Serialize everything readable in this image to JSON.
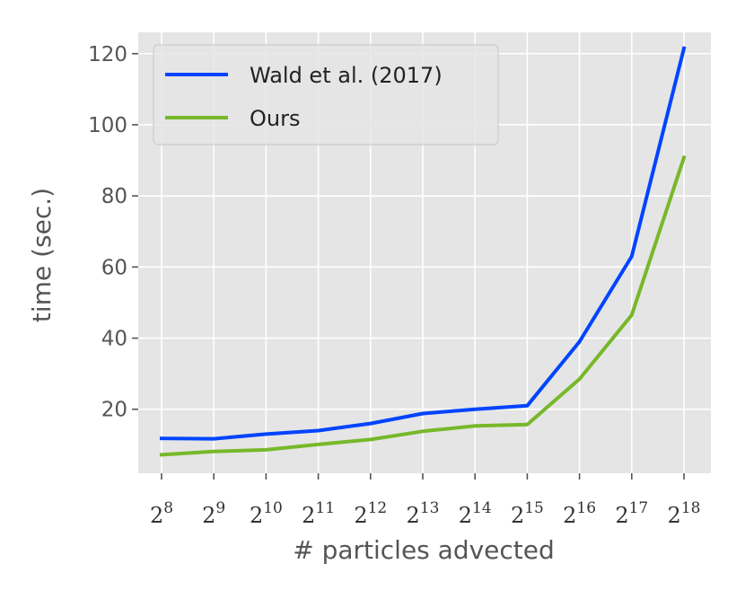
{
  "chart_data": {
    "type": "line",
    "xlabel": "# particles advected",
    "ylabel": "time (sec.)",
    "x_tick_base": "2",
    "x": [
      "8",
      "9",
      "10",
      "11",
      "12",
      "13",
      "14",
      "15",
      "16",
      "17",
      "18"
    ],
    "y_ticks": [
      20,
      40,
      60,
      80,
      100,
      120
    ],
    "ylim": [
      2,
      126
    ],
    "grid": true,
    "legend_position": "top-left",
    "series": [
      {
        "name": "Wald et al. (2017)",
        "color": "#0044ff",
        "values": [
          11.8,
          11.7,
          13.0,
          14.0,
          16.0,
          18.8,
          20.0,
          21.0,
          39.0,
          63.0,
          121.5
        ]
      },
      {
        "name": "Ours",
        "color": "#77b82a",
        "values": [
          7.2,
          8.1,
          8.6,
          10.1,
          11.5,
          13.8,
          15.3,
          15.7,
          28.5,
          46.5,
          90.8
        ]
      }
    ]
  }
}
